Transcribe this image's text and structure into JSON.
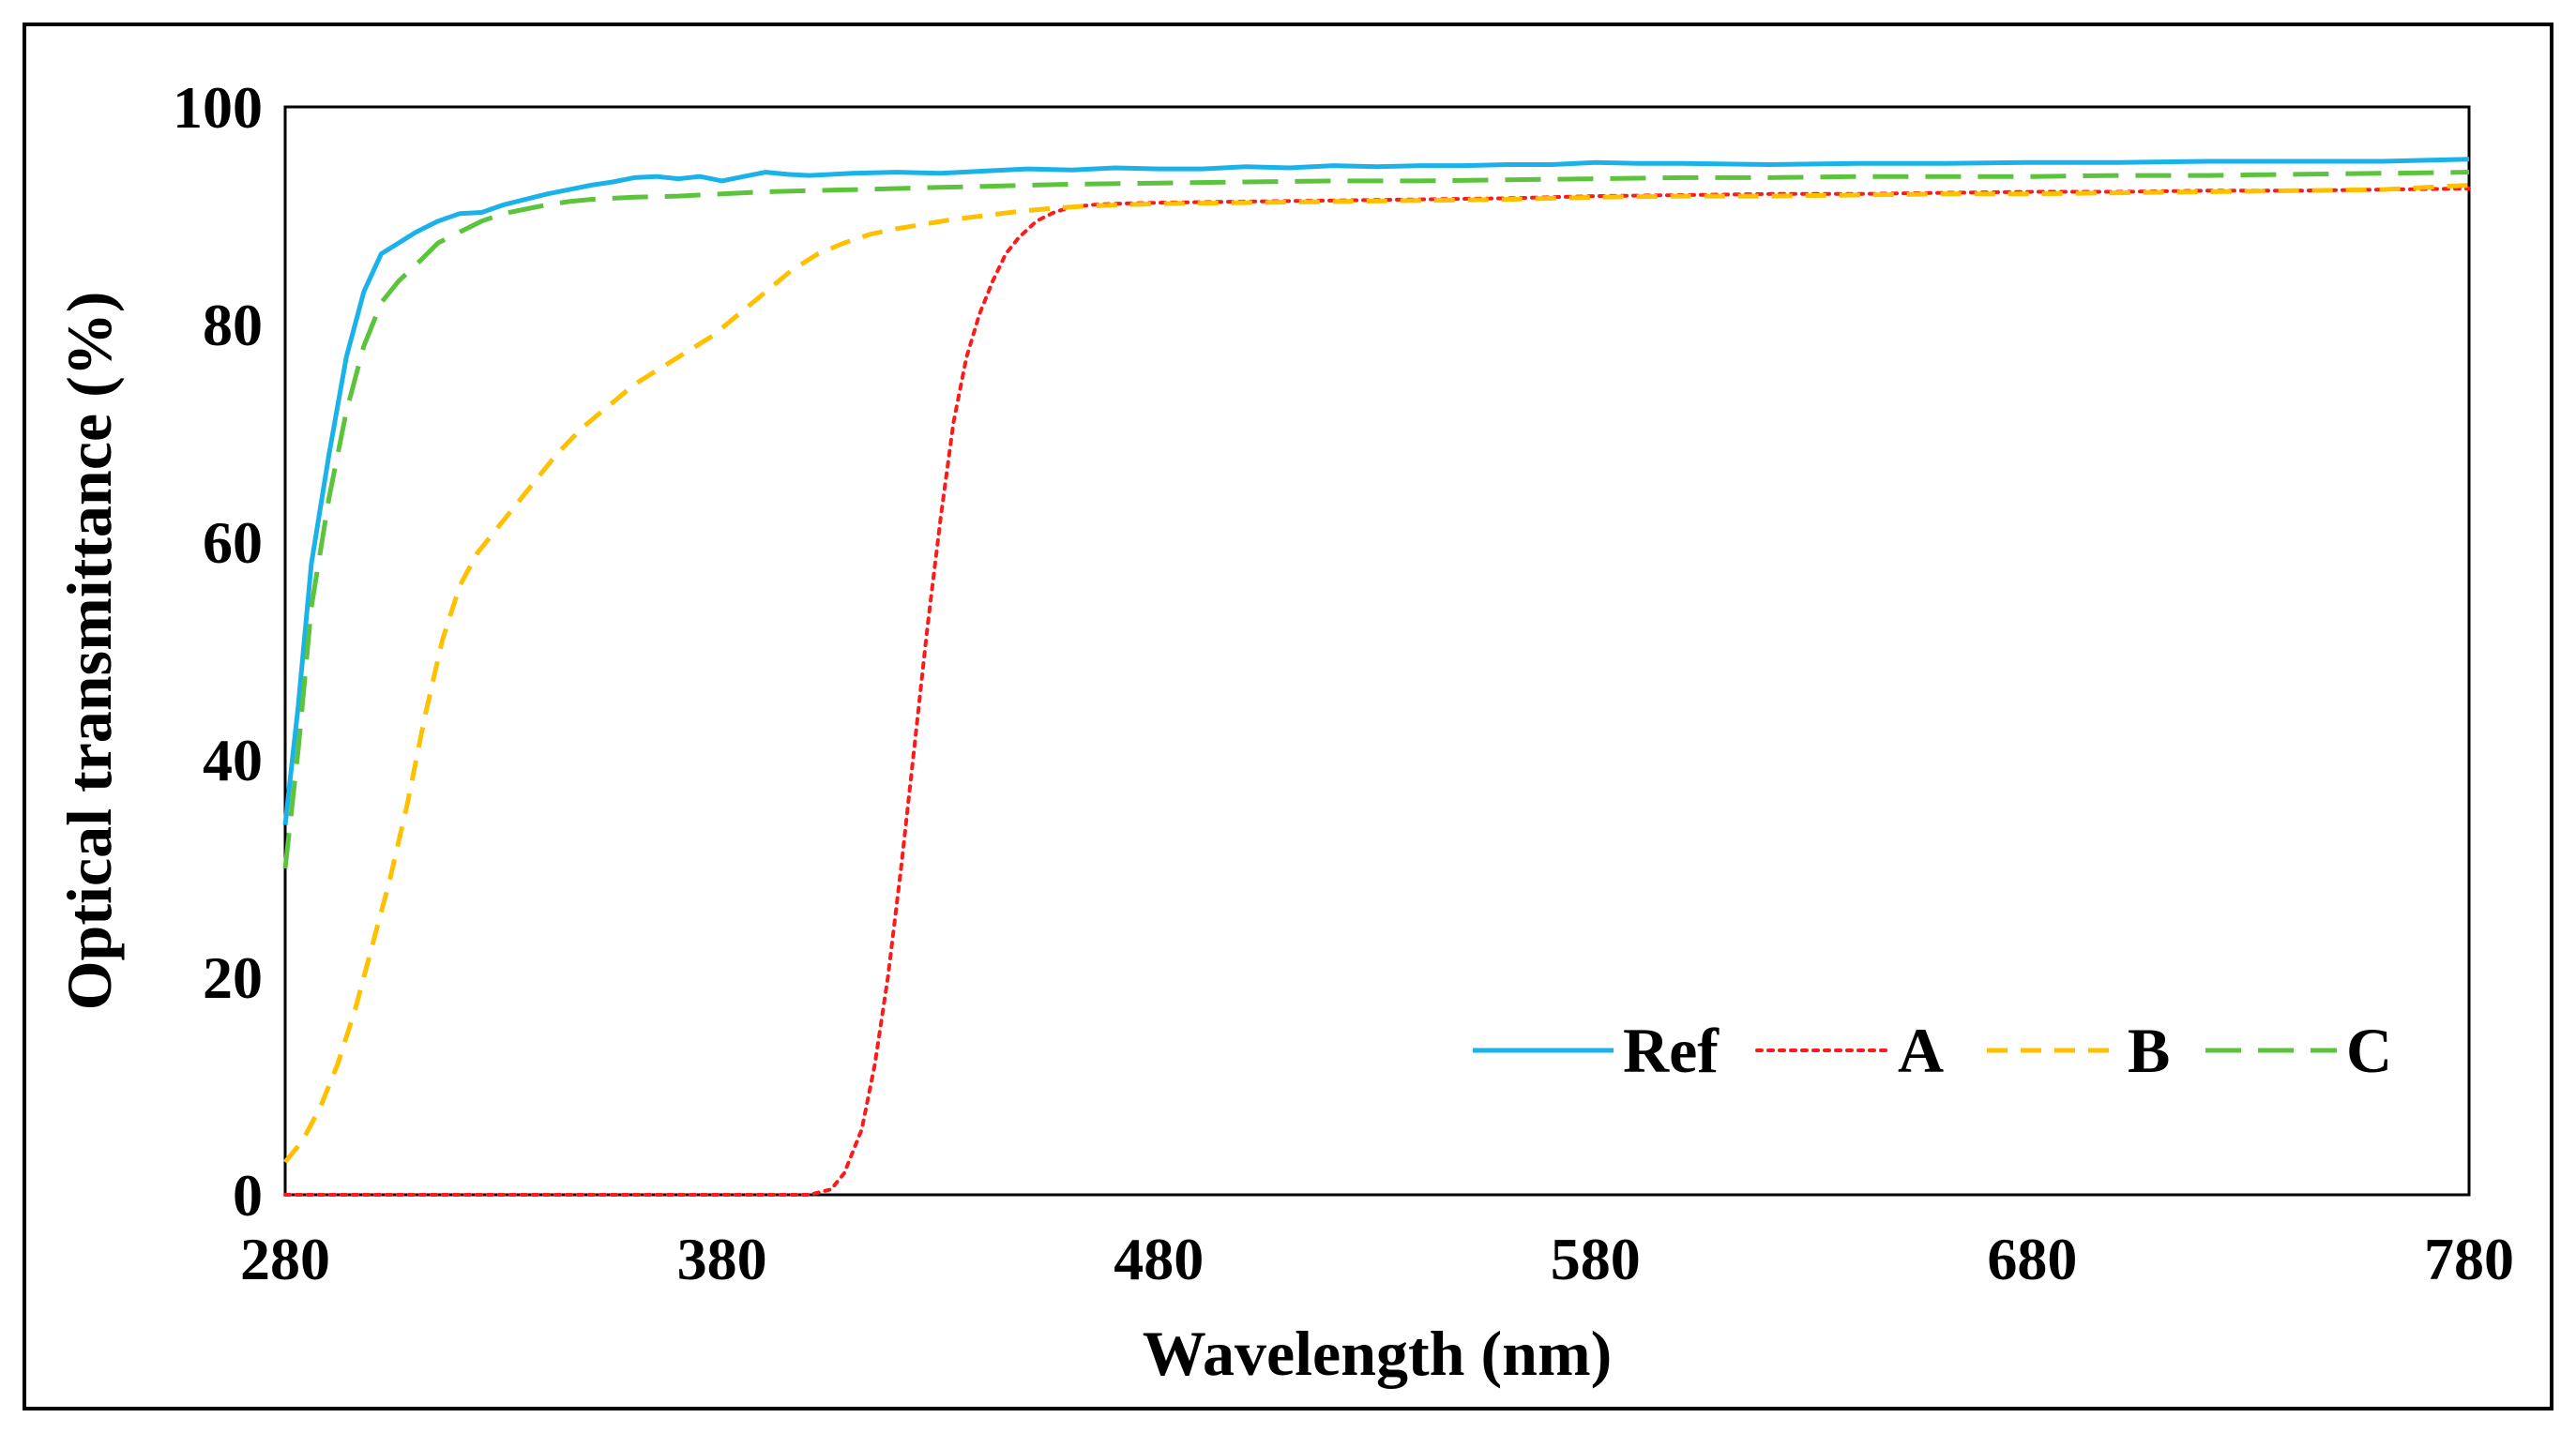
{
  "chart_data": {
    "type": "line",
    "title": "",
    "xlabel": "Wavelength (nm)",
    "ylabel": "Optical transmittance (%)",
    "xlim": [
      280,
      780
    ],
    "ylim": [
      0,
      100
    ],
    "xticks": [
      280,
      380,
      480,
      580,
      680,
      780
    ],
    "yticks": [
      0,
      20,
      40,
      60,
      80,
      100
    ],
    "xtick_labels": [
      "280",
      "380",
      "480",
      "580",
      "680",
      "780"
    ],
    "ytick_labels": [
      "0",
      "20",
      "40",
      "60",
      "80",
      "100"
    ],
    "grid": false,
    "legend_position": "bottom-right",
    "series": [
      {
        "name": "Ref",
        "color": "#1ab2e8",
        "dash": "solid",
        "x": [
          280,
          283,
          286,
          290,
          294,
          298,
          302,
          306,
          310,
          315,
          320,
          325,
          330,
          335,
          340,
          345,
          350,
          355,
          360,
          365,
          370,
          375,
          380,
          385,
          390,
          395,
          400,
          410,
          420,
          430,
          440,
          450,
          460,
          470,
          480,
          490,
          500,
          510,
          520,
          530,
          540,
          550,
          560,
          570,
          580,
          590,
          600,
          620,
          640,
          660,
          680,
          700,
          720,
          740,
          760,
          780
        ],
        "y": [
          34,
          45,
          58,
          68,
          77,
          83,
          86.5,
          87.5,
          88.5,
          89.5,
          90.2,
          90.3,
          91,
          91.5,
          92,
          92.4,
          92.8,
          93.1,
          93.5,
          93.6,
          93.4,
          93.6,
          93.2,
          93.6,
          94,
          93.8,
          93.7,
          93.9,
          94,
          93.9,
          94.1,
          94.3,
          94.2,
          94.4,
          94.3,
          94.3,
          94.5,
          94.4,
          94.6,
          94.5,
          94.6,
          94.6,
          94.7,
          94.7,
          94.9,
          94.8,
          94.8,
          94.7,
          94.8,
          94.8,
          94.9,
          94.9,
          95,
          95,
          95,
          95.2
        ]
      },
      {
        "name": "A",
        "color": "#ff1a1a",
        "dash": "dotted",
        "x": [
          280,
          300,
          350,
          400,
          405,
          408,
          412,
          415,
          418,
          421,
          424,
          427,
          430,
          433,
          436,
          439,
          442,
          445,
          448,
          452,
          456,
          460,
          465,
          470,
          480,
          500,
          520,
          540,
          560,
          580,
          600,
          620,
          640,
          660,
          680,
          700,
          720,
          740,
          760,
          780
        ],
        "y": [
          0,
          0,
          0,
          0,
          0.5,
          2,
          6,
          12,
          20,
          30,
          41,
          52,
          62,
          71,
          77,
          81,
          84,
          86.5,
          88,
          89.5,
          90.3,
          90.8,
          91,
          91.1,
          91.2,
          91.3,
          91.4,
          91.5,
          91.6,
          91.8,
          91.9,
          92,
          92,
          92.1,
          92.2,
          92.2,
          92.3,
          92.3,
          92.4,
          92.5
        ]
      },
      {
        "name": "B",
        "color": "#ffc000",
        "dash": "dashed",
        "x": [
          280,
          284,
          288,
          292,
          296,
          300,
          304,
          308,
          312,
          316,
          320,
          324,
          330,
          336,
          342,
          348,
          354,
          360,
          366,
          372,
          378,
          384,
          390,
          396,
          402,
          408,
          414,
          420,
          426,
          432,
          440,
          448,
          456,
          464,
          472,
          480,
          500,
          520,
          540,
          560,
          580,
          600,
          620,
          640,
          660,
          680,
          700,
          720,
          740,
          760,
          780
        ],
        "y": [
          3,
          5,
          8,
          12,
          17,
          23,
          29,
          36,
          44,
          51,
          56,
          59,
          62,
          65,
          68,
          70.5,
          72.5,
          74.5,
          76,
          77.5,
          79,
          81,
          83,
          85,
          86.5,
          87.5,
          88.3,
          88.8,
          89.2,
          89.6,
          90,
          90.4,
          90.7,
          90.9,
          91,
          91.1,
          91.2,
          91.3,
          91.4,
          91.5,
          91.7,
          91.8,
          91.8,
          91.9,
          92,
          92,
          92.1,
          92.2,
          92.3,
          92.4,
          92.8
        ]
      },
      {
        "name": "C",
        "color": "#5bc43c",
        "dash": "longdash",
        "x": [
          280,
          283,
          286,
          290,
          294,
          298,
          302,
          306,
          310,
          315,
          320,
          325,
          330,
          335,
          340,
          345,
          350,
          355,
          360,
          370,
          380,
          390,
          400,
          410,
          420,
          430,
          440,
          460,
          480,
          500,
          520,
          540,
          560,
          580,
          600,
          620,
          640,
          660,
          680,
          700,
          720,
          740,
          760,
          780
        ],
        "y": [
          30,
          41,
          54,
          64,
          72,
          78,
          82,
          84,
          85.5,
          87.5,
          88.5,
          89.5,
          90.2,
          90.6,
          91,
          91.3,
          91.5,
          91.6,
          91.7,
          91.8,
          92,
          92.2,
          92.3,
          92.4,
          92.5,
          92.6,
          92.7,
          92.9,
          93,
          93.1,
          93.2,
          93.2,
          93.3,
          93.4,
          93.5,
          93.5,
          93.6,
          93.6,
          93.6,
          93.7,
          93.7,
          93.8,
          93.9,
          94
        ]
      }
    ]
  }
}
